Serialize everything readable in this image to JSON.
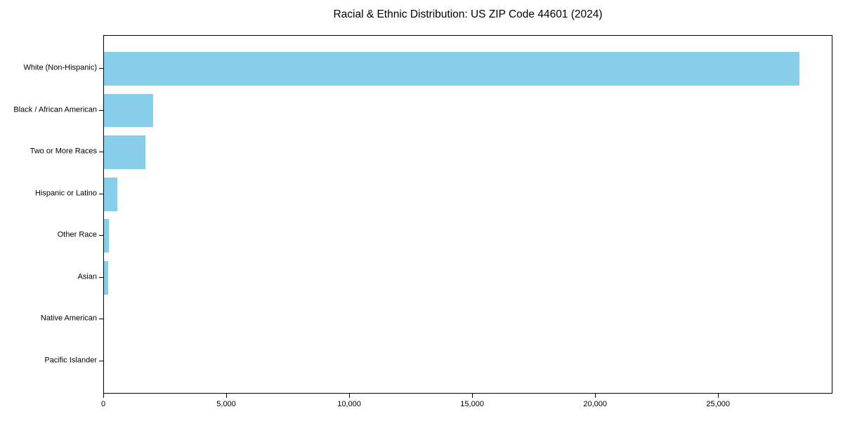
{
  "chart_data": {
    "type": "bar",
    "orientation": "horizontal",
    "title": "Racial & Ethnic Distribution: US ZIP Code 44601 (2024)",
    "xlabel": "",
    "ylabel": "",
    "categories": [
      "White (Non-Hispanic)",
      "Black / African American",
      "Two or More Races",
      "Hispanic or Latino",
      "Other Race",
      "Asian",
      "Native American",
      "Pacific Islander"
    ],
    "values": [
      28270,
      2000,
      1690,
      535,
      190,
      165,
      0,
      0
    ],
    "xlim": [
      0,
      29650
    ],
    "xticks": [
      0,
      5000,
      10000,
      15000,
      20000,
      25000
    ],
    "xtick_labels": [
      "0",
      "5,000",
      "10,000",
      "15,000",
      "20,000",
      "25,000"
    ],
    "bar_color": "#87CEEB",
    "axis_color": "#000000",
    "grid": false,
    "legend": null
  }
}
